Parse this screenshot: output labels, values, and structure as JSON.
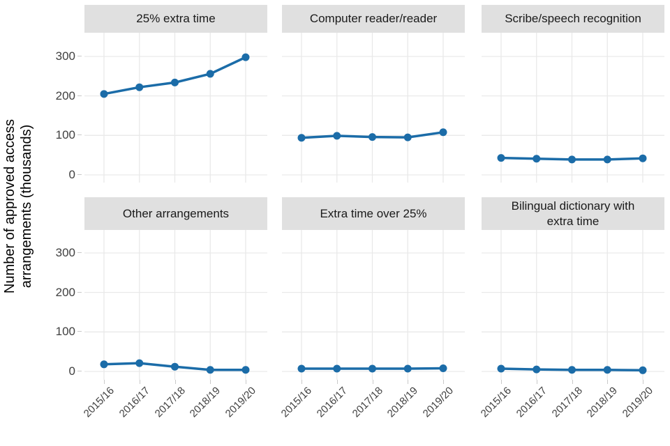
{
  "chart_data": {
    "type": "line",
    "title": "",
    "ylabel": "Number of approved access arrangements (thousands)",
    "ylabel_lines": [
      "Number of approved access",
      "arrangements (thousands)"
    ],
    "x": [
      "2015/16",
      "2016/17",
      "2017/18",
      "2018/19",
      "2019/20"
    ],
    "facets": [
      {
        "name": "25% extra time",
        "values": [
          205,
          222,
          234,
          256,
          298
        ]
      },
      {
        "name": "Computer reader/reader",
        "values": [
          94,
          99,
          96,
          95,
          108
        ]
      },
      {
        "name": "Scribe/speech recognition",
        "values": [
          43,
          41,
          39,
          39,
          42
        ]
      },
      {
        "name": "Other arrangements",
        "values": [
          18,
          21,
          12,
          4,
          4
        ]
      },
      {
        "name": "Extra time over 25%",
        "values": [
          7,
          7,
          7,
          7,
          8
        ]
      },
      {
        "name": "Bilingual dictionary with extra time",
        "values": [
          7,
          5,
          4,
          4,
          3
        ]
      }
    ],
    "yticks": [
      0,
      100,
      200,
      300
    ],
    "ylim": [
      -18,
      360
    ],
    "grid": true,
    "legend": "none",
    "colors": {
      "line": "#1b6ca8",
      "strip_bg": "#e0e0e0",
      "gridline": "#e9e9e9",
      "tick": "#c9c9c9",
      "axis_text": "#404040",
      "title_text": "#1a1a1a"
    }
  }
}
